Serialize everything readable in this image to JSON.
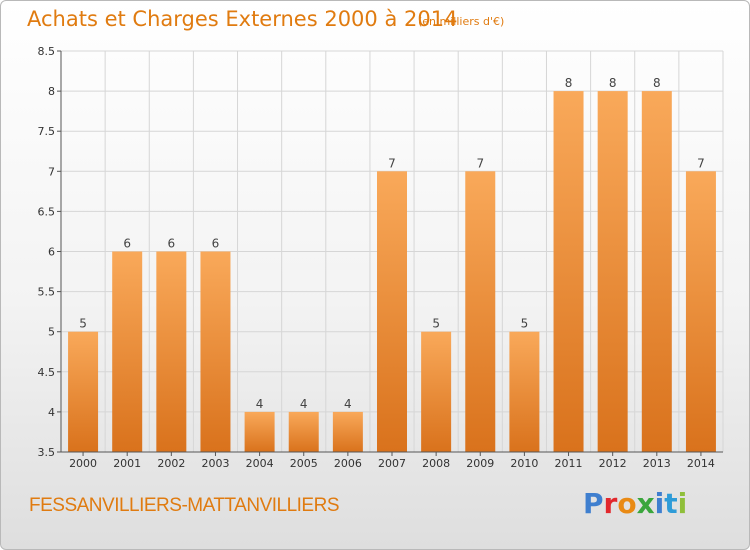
{
  "header": {
    "title": "Achats et Charges Externes 2000 à 2014",
    "unit": "(en milliers d'€)"
  },
  "footer": {
    "commune": "FESSANVILLIERS-MATTANVILLIERS",
    "logo": "Proxiti",
    "logo_colors": [
      "#3f7fcf",
      "#e2282d",
      "#e98a14",
      "#3aa63c",
      "#3f7fcf",
      "#2f9cd8",
      "#8fbf3a"
    ]
  },
  "colors": {
    "title": "#e07b10",
    "bar_top": "#f9a95a",
    "bar_bottom": "#d9721c",
    "grid": "#d6d6d6",
    "axis": "#555555"
  },
  "chart_data": {
    "type": "bar",
    "title": "Achats et Charges Externes 2000 à 2014",
    "subtitle": "(en milliers d'€)",
    "xlabel": "",
    "ylabel": "",
    "categories": [
      "2000",
      "2001",
      "2002",
      "2003",
      "2004",
      "2005",
      "2006",
      "2007",
      "2008",
      "2009",
      "2010",
      "2011",
      "2012",
      "2013",
      "2014"
    ],
    "values": [
      5,
      6,
      6,
      6,
      4,
      4,
      4,
      7,
      5,
      7,
      5,
      8,
      8,
      8,
      7
    ],
    "data_labels": [
      "5",
      "6",
      "6",
      "6",
      "4",
      "4",
      "4",
      "7",
      "5",
      "7",
      "5",
      "8",
      "8",
      "8",
      "7"
    ],
    "ylim": [
      3.5,
      8.5
    ],
    "yticks": [
      "3.5",
      "4",
      "4.5",
      "5",
      "5.5",
      "6",
      "6.5",
      "7",
      "7.5",
      "8",
      "8.5"
    ],
    "grid": true,
    "legend": "none"
  }
}
